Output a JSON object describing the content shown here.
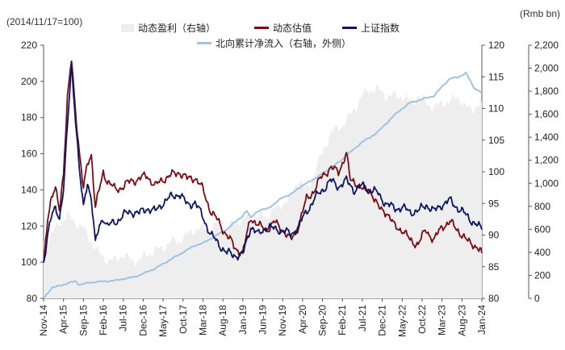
{
  "labels": {
    "left_unit": "(2014/11/17=100)",
    "right_unit": "(Rmb bn)"
  },
  "legend": {
    "earnings": "动态盈利（右轴）",
    "valuation": "动态估值",
    "index": "上证指数",
    "northbound": "北向累计净流入（右轴，外侧）"
  },
  "colors": {
    "earnings": "#eeeeee",
    "valuation": "#7a0c14",
    "index": "#0d1660",
    "northbound": "#9fc3e4"
  },
  "chart_data": {
    "type": "line",
    "x_tick_labels": [
      "Nov-14",
      "Apr-15",
      "Sep-15",
      "Feb-16",
      "Jul-16",
      "Dec-16",
      "May-17",
      "Oct-17",
      "Mar-18",
      "Aug-18",
      "Jan-19",
      "Jun-19",
      "Nov-19",
      "Apr-20",
      "Sep-20",
      "Feb-21",
      "Jul-21",
      "Dec-21",
      "May-22",
      "Oct-22",
      "Mar-23",
      "Aug-23",
      "Jan-24"
    ],
    "x_range": [
      0,
      110
    ],
    "axes": {
      "left": {
        "min": 80,
        "max": 220,
        "step": 20,
        "ticks": [
          "80",
          "100",
          "120",
          "140",
          "160",
          "180",
          "200",
          "220"
        ]
      },
      "right_inner": {
        "min": 80,
        "max": 120,
        "step": 5,
        "ticks": [
          "80",
          "85",
          "90",
          "95",
          "100",
          "105",
          "110",
          "115",
          "120"
        ]
      },
      "right_outer": {
        "min": 0,
        "max": 2200,
        "step": 200,
        "ticks": [
          "0",
          "200",
          "400",
          "600",
          "800",
          "1,000",
          "1,200",
          "1,400",
          "1,600",
          "1,800",
          "2,000",
          "2,200"
        ]
      }
    },
    "series": [
      {
        "name": "动态盈利（右轴）",
        "axis": "right_inner",
        "kind": "area",
        "points": [
          [
            0,
            89
          ],
          [
            2,
            90
          ],
          [
            4,
            92
          ],
          [
            6,
            93
          ],
          [
            8,
            92
          ],
          [
            10,
            91
          ],
          [
            12,
            89
          ],
          [
            14,
            87
          ],
          [
            16,
            86
          ],
          [
            18,
            86
          ],
          [
            20,
            87
          ],
          [
            22,
            86
          ],
          [
            24,
            86
          ],
          [
            26,
            87
          ],
          [
            28,
            87.5
          ],
          [
            30,
            88
          ],
          [
            32,
            89
          ],
          [
            34,
            89
          ],
          [
            36,
            90
          ],
          [
            38,
            91
          ],
          [
            40,
            91
          ],
          [
            42,
            91
          ],
          [
            44,
            92
          ],
          [
            46,
            91
          ],
          [
            48,
            92
          ],
          [
            50,
            92.5
          ],
          [
            52,
            93
          ],
          [
            54,
            93
          ],
          [
            56,
            93
          ],
          [
            58,
            94
          ],
          [
            60,
            95
          ],
          [
            62,
            96
          ],
          [
            64,
            99
          ],
          [
            66,
            97
          ],
          [
            68,
            100
          ],
          [
            70,
            103
          ],
          [
            72,
            106
          ],
          [
            74,
            107
          ],
          [
            76,
            108
          ],
          [
            78,
            110
          ],
          [
            80,
            112
          ],
          [
            82,
            113
          ],
          [
            84,
            113
          ],
          [
            86,
            112
          ],
          [
            88,
            112
          ],
          [
            90,
            112
          ],
          [
            92,
            111
          ],
          [
            94,
            112
          ],
          [
            96,
            111
          ],
          [
            98,
            110
          ],
          [
            100,
            111
          ],
          [
            102,
            111
          ],
          [
            104,
            112
          ],
          [
            106,
            110
          ],
          [
            108,
            110
          ],
          [
            110,
            111
          ]
        ]
      },
      {
        "name": "北向累计净流入（右轴，外侧）",
        "axis": "right_outer",
        "kind": "line",
        "points": [
          [
            0,
            0
          ],
          [
            2,
            90
          ],
          [
            4,
            110
          ],
          [
            6,
            130
          ],
          [
            8,
            150
          ],
          [
            9,
            120
          ],
          [
            10,
            125
          ],
          [
            12,
            140
          ],
          [
            14,
            145
          ],
          [
            16,
            150
          ],
          [
            18,
            155
          ],
          [
            20,
            170
          ],
          [
            22,
            180
          ],
          [
            24,
            200
          ],
          [
            26,
            230
          ],
          [
            28,
            260
          ],
          [
            30,
            300
          ],
          [
            32,
            340
          ],
          [
            34,
            380
          ],
          [
            36,
            420
          ],
          [
            38,
            460
          ],
          [
            40,
            480
          ],
          [
            42,
            520
          ],
          [
            44,
            560
          ],
          [
            46,
            600
          ],
          [
            48,
            660
          ],
          [
            50,
            720
          ],
          [
            51,
            760
          ],
          [
            52,
            700
          ],
          [
            53,
            740
          ],
          [
            54,
            760
          ],
          [
            56,
            780
          ],
          [
            58,
            820
          ],
          [
            60,
            880
          ],
          [
            62,
            900
          ],
          [
            64,
            960
          ],
          [
            66,
            1000
          ],
          [
            68,
            1040
          ],
          [
            70,
            1080
          ],
          [
            72,
            1130
          ],
          [
            74,
            1180
          ],
          [
            76,
            1240
          ],
          [
            78,
            1300
          ],
          [
            80,
            1360
          ],
          [
            82,
            1400
          ],
          [
            84,
            1450
          ],
          [
            86,
            1520
          ],
          [
            88,
            1590
          ],
          [
            90,
            1650
          ],
          [
            92,
            1700
          ],
          [
            94,
            1720
          ],
          [
            96,
            1740
          ],
          [
            98,
            1760
          ],
          [
            100,
            1840
          ],
          [
            102,
            1910
          ],
          [
            104,
            1920
          ],
          [
            106,
            1960
          ],
          [
            108,
            1830
          ],
          [
            110,
            1790
          ]
        ]
      },
      {
        "name": "动态估值",
        "axis": "left",
        "kind": "line",
        "points": [
          [
            0,
            100
          ],
          [
            1,
            125
          ],
          [
            2,
            135
          ],
          [
            3,
            140
          ],
          [
            4,
            130
          ],
          [
            5,
            150
          ],
          [
            6,
            190
          ],
          [
            7,
            212
          ],
          [
            8,
            185
          ],
          [
            9,
            160
          ],
          [
            10,
            140
          ],
          [
            11,
            155
          ],
          [
            12,
            160
          ],
          [
            13,
            130
          ],
          [
            14,
            140
          ],
          [
            15,
            150
          ],
          [
            16,
            145
          ],
          [
            18,
            140
          ],
          [
            20,
            142
          ],
          [
            22,
            145
          ],
          [
            24,
            146
          ],
          [
            26,
            148
          ],
          [
            28,
            142
          ],
          [
            30,
            146
          ],
          [
            32,
            148
          ],
          [
            34,
            150
          ],
          [
            36,
            146
          ],
          [
            38,
            147
          ],
          [
            40,
            140
          ],
          [
            42,
            128
          ],
          [
            44,
            122
          ],
          [
            46,
            115
          ],
          [
            48,
            108
          ],
          [
            50,
            105
          ],
          [
            52,
            125
          ],
          [
            54,
            120
          ],
          [
            56,
            118
          ],
          [
            58,
            122
          ],
          [
            60,
            118
          ],
          [
            62,
            112
          ],
          [
            64,
            120
          ],
          [
            66,
            135
          ],
          [
            68,
            140
          ],
          [
            70,
            148
          ],
          [
            72,
            152
          ],
          [
            74,
            150
          ],
          [
            76,
            160
          ],
          [
            77,
            145
          ],
          [
            78,
            145
          ],
          [
            80,
            140
          ],
          [
            82,
            140
          ],
          [
            84,
            130
          ],
          [
            86,
            128
          ],
          [
            88,
            120
          ],
          [
            90,
            118
          ],
          [
            92,
            112
          ],
          [
            94,
            110
          ],
          [
            96,
            118
          ],
          [
            98,
            112
          ],
          [
            100,
            120
          ],
          [
            102,
            122
          ],
          [
            104,
            118
          ],
          [
            106,
            112
          ],
          [
            108,
            110
          ],
          [
            110,
            105
          ]
        ]
      },
      {
        "name": "上证指数",
        "axis": "left",
        "kind": "line",
        "points": [
          [
            0,
            100
          ],
          [
            1,
            115
          ],
          [
            2,
            125
          ],
          [
            3,
            130
          ],
          [
            4,
            125
          ],
          [
            5,
            140
          ],
          [
            6,
            175
          ],
          [
            7,
            210
          ],
          [
            8,
            180
          ],
          [
            9,
            150
          ],
          [
            10,
            130
          ],
          [
            11,
            145
          ],
          [
            12,
            135
          ],
          [
            13,
            110
          ],
          [
            14,
            120
          ],
          [
            15,
            125
          ],
          [
            16,
            120
          ],
          [
            18,
            122
          ],
          [
            20,
            126
          ],
          [
            22,
            128
          ],
          [
            24,
            127
          ],
          [
            26,
            130
          ],
          [
            28,
            128
          ],
          [
            30,
            133
          ],
          [
            32,
            136
          ],
          [
            34,
            138
          ],
          [
            36,
            132
          ],
          [
            38,
            133
          ],
          [
            40,
            125
          ],
          [
            42,
            115
          ],
          [
            44,
            110
          ],
          [
            46,
            105
          ],
          [
            48,
            104
          ],
          [
            50,
            104
          ],
          [
            52,
            120
          ],
          [
            54,
            115
          ],
          [
            56,
            120
          ],
          [
            58,
            118
          ],
          [
            60,
            118
          ],
          [
            62,
            115
          ],
          [
            64,
            120
          ],
          [
            66,
            128
          ],
          [
            68,
            135
          ],
          [
            70,
            140
          ],
          [
            72,
            145
          ],
          [
            74,
            142
          ],
          [
            76,
            145
          ],
          [
            78,
            140
          ],
          [
            80,
            142
          ],
          [
            82,
            140
          ],
          [
            84,
            138
          ],
          [
            86,
            132
          ],
          [
            88,
            130
          ],
          [
            90,
            130
          ],
          [
            92,
            128
          ],
          [
            94,
            128
          ],
          [
            96,
            132
          ],
          [
            98,
            128
          ],
          [
            100,
            132
          ],
          [
            102,
            134
          ],
          [
            104,
            130
          ],
          [
            106,
            126
          ],
          [
            108,
            122
          ],
          [
            110,
            118
          ]
        ]
      }
    ]
  }
}
